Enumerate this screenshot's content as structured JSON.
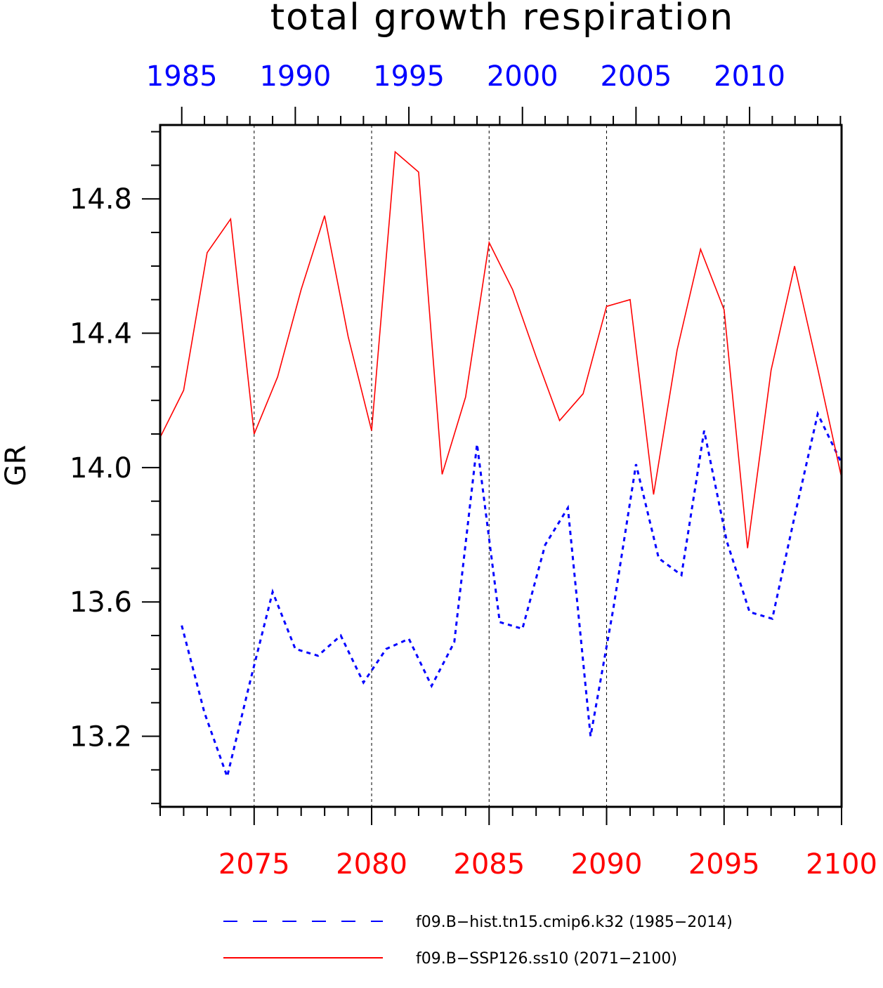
{
  "chart_data": {
    "type": "line",
    "title": "total growth respiration",
    "ylabel": "GR",
    "ylim": [
      12.99,
      15.02
    ],
    "yticks": [
      "13.2",
      "13.6",
      "14.0",
      "14.4",
      "14.8"
    ],
    "grid": "vertical dashed lines at major x ticks",
    "top_axis": {
      "color": "#0000ff",
      "range": [
        1984.05,
        2014.05
      ],
      "ticks": [
        "1985",
        "1990",
        "1995",
        "2000",
        "2005",
        "2010"
      ]
    },
    "bottom_axis": {
      "color": "#ff0000",
      "range": [
        2071,
        2100
      ],
      "ticks": [
        "2075",
        "2080",
        "2085",
        "2090",
        "2095",
        "2100"
      ]
    },
    "legend": {
      "placement": "bottom"
    },
    "series": [
      {
        "name": "f09.B−hist.tn15.cmip6.k32 (1985−2014)",
        "color": "#0000ff",
        "style": "dashed",
        "axis": "top",
        "x": [
          1985,
          1986,
          1987,
          1988,
          1989,
          1990,
          1991,
          1992,
          1993,
          1994,
          1995,
          1996,
          1997,
          1998,
          1999,
          2000,
          2001,
          2002,
          2003,
          2004,
          2005,
          2006,
          2007,
          2008,
          2009,
          2010,
          2011,
          2012,
          2013,
          2014
        ],
        "values": [
          13.53,
          13.27,
          13.08,
          13.36,
          13.63,
          13.46,
          13.44,
          13.5,
          13.36,
          13.46,
          13.49,
          13.35,
          13.48,
          14.07,
          13.54,
          13.52,
          13.77,
          13.88,
          13.2,
          13.58,
          14.01,
          13.73,
          13.68,
          14.11,
          13.78,
          13.57,
          13.55,
          13.86,
          14.16,
          14.02
        ]
      },
      {
        "name": "f09.B−SSP126.ss10 (2071−2100)",
        "color": "#ff0000",
        "style": "solid",
        "axis": "bottom",
        "x": [
          2071,
          2072,
          2073,
          2074,
          2075,
          2076,
          2077,
          2078,
          2079,
          2080,
          2081,
          2082,
          2083,
          2084,
          2085,
          2086,
          2087,
          2088,
          2089,
          2090,
          2091,
          2092,
          2093,
          2094,
          2095,
          2096,
          2097,
          2098,
          2099,
          2100
        ],
        "values": [
          14.09,
          14.23,
          14.64,
          14.74,
          14.1,
          14.27,
          14.53,
          14.75,
          14.39,
          14.11,
          14.94,
          14.88,
          13.98,
          14.21,
          14.67,
          14.53,
          14.33,
          14.14,
          14.22,
          14.48,
          14.5,
          13.92,
          14.35,
          14.65,
          14.47,
          13.76,
          14.29,
          14.6,
          14.29,
          13.97
        ]
      }
    ]
  }
}
